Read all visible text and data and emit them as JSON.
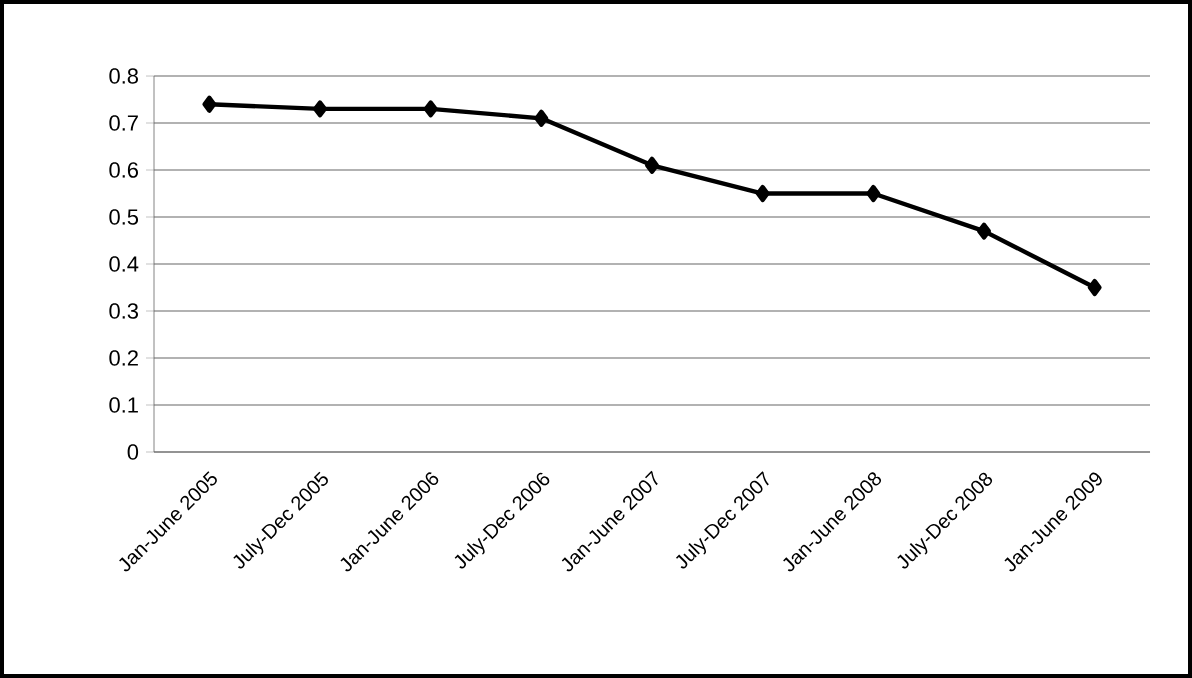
{
  "chart_data": {
    "type": "line",
    "categories": [
      "Jan-June 2005",
      "July-Dec 2005",
      "Jan-June 2006",
      "July-Dec 2006",
      "Jan-June 2007",
      "July-Dec 2007",
      "Jan-June 2008",
      "July-Dec 2008",
      "Jan-June 2009"
    ],
    "series": [
      {
        "color": "#000000",
        "values": [
          0.74,
          0.73,
          0.73,
          0.71,
          0.61,
          0.55,
          0.55,
          0.47,
          0.35
        ]
      }
    ],
    "ylim": [
      0,
      0.8
    ],
    "yticks": [
      0,
      0.1,
      0.2,
      0.3,
      0.4,
      0.5,
      0.6,
      0.7,
      0.8
    ],
    "grid": "y",
    "marker": "diamond",
    "line_style": "solid"
  }
}
